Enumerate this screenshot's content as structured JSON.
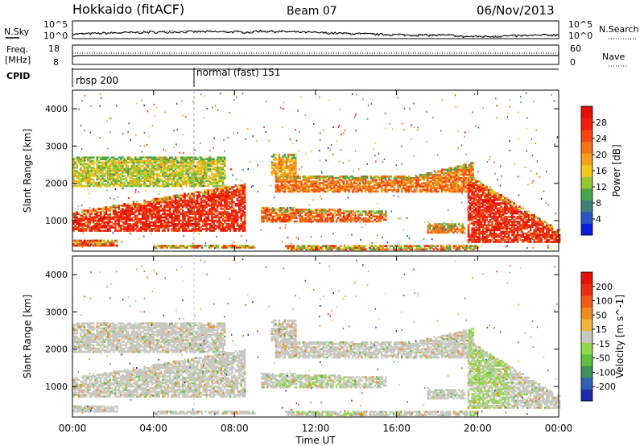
{
  "header": {
    "station": "Hokkaido (fitACF)",
    "beam": "Beam 07",
    "date": "06/Nov/2013"
  },
  "noise_panel": {
    "left_label": "N.Sky",
    "right_label": "N.Search",
    "ytick_top": "10^5",
    "ytick_bottom": "10^0"
  },
  "freq_panel": {
    "left_label_1": "Freq.",
    "left_label_2": "[MHz]",
    "right_label": "Nave",
    "ytick_left_top": "18",
    "ytick_left_bottom": "8",
    "ytick_right_top": "60",
    "ytick_right_bottom": "0"
  },
  "cpid": {
    "label": "CPID",
    "segments": [
      {
        "name": "rbsp 200",
        "start_hour": 0
      },
      {
        "name": "normal (fast) 151",
        "start_hour": 6
      }
    ]
  },
  "chart_data": [
    {
      "type": "heatmap",
      "panel": "power",
      "ylabel": "Slant Range [km]",
      "ylim": [
        180,
        4500
      ],
      "yticks": [
        "1000",
        "2000",
        "3000",
        "4000"
      ],
      "ytick_values": [
        1000,
        2000,
        3000,
        4000
      ],
      "xlim_hours": [
        0,
        24
      ],
      "colorbar": {
        "label": "Power [dB]",
        "ticks": [
          "4",
          "8",
          "12",
          "16",
          "20",
          "24",
          "28"
        ],
        "tick_values": [
          4,
          8,
          12,
          16,
          20,
          24,
          28
        ],
        "range": [
          0,
          32
        ],
        "colors": [
          "#0a1ee0",
          "#2a55c8",
          "#3f7f7a",
          "#4aa64a",
          "#96c832",
          "#f0c81e",
          "#f5a01e",
          "#f57314",
          "#f5460f",
          "#f01e0a",
          "#e60f05"
        ]
      }
    },
    {
      "type": "heatmap",
      "panel": "velocity",
      "xlabel": "Time UT",
      "ylabel": "Slant Range [km]",
      "ylim": [
        180,
        4500
      ],
      "yticks": [
        "1000",
        "2000",
        "3000",
        "4000"
      ],
      "ytick_values": [
        1000,
        2000,
        3000,
        4000
      ],
      "xlim_hours": [
        0,
        24
      ],
      "xticks": [
        "00:00",
        "04:00",
        "08:00",
        "12:00",
        "16:00",
        "20:00",
        "00:00"
      ],
      "xtick_hours": [
        0,
        4,
        8,
        12,
        16,
        20,
        24
      ],
      "colorbar": {
        "label": "Velocity [m s^-1]",
        "ticks": [
          "200",
          "100",
          "50",
          "15",
          "-15",
          "-50",
          "-100",
          "-200"
        ],
        "colors": [
          "#1a2aa8",
          "#2f5fb3",
          "#3f8f5f",
          "#5fbf3f",
          "#8fd84a",
          "#c8c8c0",
          "#f0b43c",
          "#f08c1e",
          "#f05a14",
          "#eb2d0f",
          "#e60f0a"
        ]
      }
    }
  ]
}
